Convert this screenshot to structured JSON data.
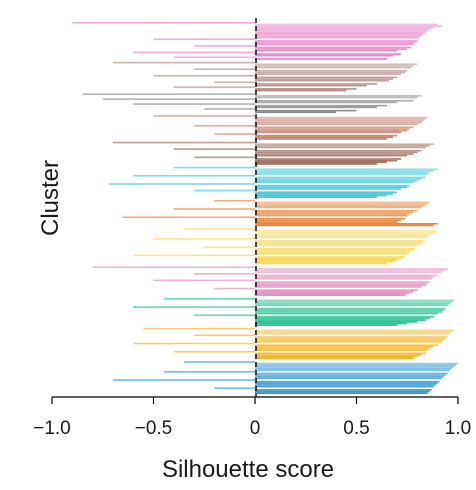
{
  "chart_data": {
    "type": "bar",
    "orientation": "horizontal",
    "title": "",
    "xlabel": "Silhouette score",
    "ylabel": "Cluster",
    "xlim": [
      -1.0,
      1.0
    ],
    "x_ticks": [
      {
        "value": -1.0,
        "label": "−1.0"
      },
      {
        "value": -0.5,
        "label": "−0.5"
      },
      {
        "value": 0,
        "label": "0"
      },
      {
        "value": 0.5,
        "label": "0.5"
      },
      {
        "value": 1.0,
        "label": "1.0"
      }
    ],
    "grid": false,
    "legend": "none",
    "zero_line": true,
    "clusters": [
      {
        "color": "#e87fc6",
        "values": [
          -0.9,
          0.9,
          0.92,
          0.88,
          0.86,
          0.85,
          0.84,
          0.83,
          0.82,
          0.81,
          -0.5,
          0.8,
          0.79,
          0.78,
          -0.3,
          0.77,
          0.75,
          0.7,
          -0.6,
          0.72,
          0.68,
          -0.4,
          0.65
        ]
      },
      {
        "color": "#b08a84",
        "values": [
          -0.7,
          0.8,
          0.78,
          0.77,
          -0.3,
          0.75,
          0.74,
          0.72,
          -0.5,
          0.7,
          0.68,
          0.66,
          -0.2,
          0.6,
          0.55,
          -0.4,
          0.5,
          0.45
        ]
      },
      {
        "color": "#8a8a8a",
        "values": [
          -0.85,
          0.82,
          0.8,
          -0.75,
          0.78,
          0.7,
          -0.6,
          0.65,
          0.6,
          -0.25,
          0.5,
          0.4
        ]
      },
      {
        "color": "#c8826e",
        "values": [
          -0.5,
          0.85,
          0.84,
          0.83,
          0.82,
          0.8,
          -0.3,
          0.78,
          0.76,
          0.75,
          0.72,
          -0.2,
          0.7,
          0.68,
          0.65
        ]
      },
      {
        "color": "#9d6a5c",
        "values": [
          -0.7,
          0.88,
          0.86,
          0.84,
          -0.4,
          0.82,
          0.8,
          0.78,
          0.75,
          -0.3,
          0.72,
          0.7,
          0.65,
          0.6
        ]
      },
      {
        "color": "#3fc6d8",
        "values": [
          -0.4,
          0.9,
          0.88,
          0.86,
          0.85,
          -0.6,
          0.84,
          0.82,
          0.8,
          0.78,
          -0.72,
          0.76,
          0.75,
          0.72,
          -0.3,
          0.7,
          0.68,
          0.65,
          0.6
        ]
      },
      {
        "color": "#e8843a",
        "values": [
          -0.2,
          0.86,
          0.85,
          0.84,
          0.82,
          -0.4,
          0.8,
          0.78,
          0.76,
          0.75,
          -0.65,
          0.74,
          0.72,
          0.7,
          0.9,
          0.88
        ]
      },
      {
        "color": "#f5d75a",
        "values": [
          -0.35,
          0.9,
          0.89,
          0.88,
          0.86,
          0.85,
          -0.5,
          0.84,
          0.83,
          0.82,
          0.8,
          -0.25,
          0.79,
          0.78,
          0.76,
          0.75,
          -0.6,
          0.74,
          0.72,
          0.7,
          0.68,
          0.65
        ]
      },
      {
        "color": "#e08fc0",
        "values": [
          -0.8,
          0.95,
          0.94,
          0.92,
          -0.3,
          0.9,
          0.88,
          0.87,
          -0.5,
          0.86,
          0.85,
          0.84,
          0.82,
          -0.2,
          0.8,
          0.78,
          0.76,
          0.74
        ]
      },
      {
        "color": "#22c08e",
        "values": [
          -0.45,
          0.98,
          0.97,
          0.96,
          0.95,
          -0.6,
          0.94,
          0.93,
          0.92,
          0.9,
          -0.3,
          0.88,
          0.86,
          0.84,
          0.8,
          0.75,
          0.7
        ]
      },
      {
        "color": "#f0b52a",
        "values": [
          -0.55,
          0.98,
          0.97,
          0.96,
          -0.3,
          0.95,
          0.94,
          0.93,
          0.92,
          -0.6,
          0.9,
          0.88,
          0.86,
          0.85,
          -0.4,
          0.84,
          0.82,
          0.8,
          0.78
        ]
      },
      {
        "color": "#2e97d2",
        "values": [
          -0.35,
          1.0,
          0.99,
          0.98,
          0.97,
          0.96,
          -0.45,
          0.95,
          0.94,
          0.93,
          0.92,
          -0.7,
          0.91,
          0.9,
          0.89,
          0.88,
          -0.2,
          0.87,
          0.86,
          0.85
        ]
      }
    ]
  }
}
